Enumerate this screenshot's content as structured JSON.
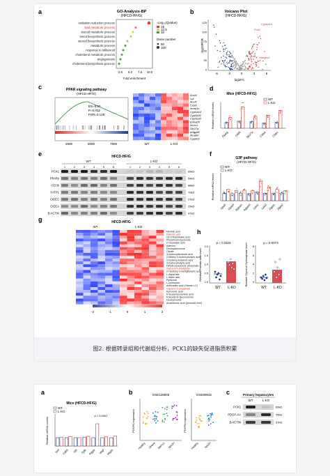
{
  "figure1": {
    "caption": "图2. 根据转录组和代谢组分析，PCK1的缺失促进脂质积累",
    "panel_a": {
      "letter": "a",
      "title": "GO-Analysis-BP",
      "subtitle": "(HFCD-HF/G)",
      "terms": [
        "oxidation-reduction process",
        "lipid metabolic process",
        "steroid metabolic process",
        "sterol biosynthetic process",
        "steroid biosynthetic process",
        "metabolic process",
        "response to stilbenoid",
        "cholesterol metabolic process",
        "angiogenesis",
        "cholesterol biosynthetic process"
      ],
      "xlabel": "Fold enrichment",
      "xticks": [
        "2.5",
        "5.0",
        "7.5",
        "10.0"
      ],
      "legend_q_title": "-Log₁₀(Qvalue)",
      "legend_q": [
        "15",
        "12.5",
        "10"
      ],
      "legend_gene_title": "Gene number",
      "legend_gene": [
        "50",
        "100"
      ]
    },
    "panel_b": {
      "letter": "b",
      "title": "Volcano Plot",
      "subtitle": "(HFCD-HF/G)",
      "ylabel": "-log10FDR",
      "xlabel": "log2FC",
      "xticks": [
        "-6",
        "-3",
        "0",
        "3",
        "6"
      ],
      "yticks": [
        "125",
        "100",
        "75",
        "50",
        "25",
        "0"
      ],
      "genes": [
        "Cyp4a14",
        "Pck1",
        "Hmgcs2"
      ]
    },
    "panel_c": {
      "letter": "c",
      "title": "PPAR signaling pathway",
      "subtitle": "(HFCD-HF/G)",
      "stats": [
        "ES=0.57",
        "P=0.012",
        "FDR=0.128"
      ],
      "xticks": [
        "2500",
        "5000",
        "7500"
      ],
      "groups": [
        "WT",
        "L-KO"
      ],
      "genes": [
        "Acsl4",
        "Lpl",
        "Acsl1",
        "Cd36",
        "Acaa1b",
        "Cyp4a14",
        "Cyp4a31",
        "Cyp4a32",
        "Ehhadh",
        "Acox1",
        "Slc27a",
        "Angptl4",
        "Acadm",
        "Cyp8b1"
      ]
    },
    "panel_d": {
      "letter": "d",
      "title": "Mice (HFCD-HF/G)",
      "ylabel": "Relative mRNA levels",
      "legend": [
        "WT",
        "L-KO"
      ],
      "categories": [
        "Pparg",
        "Cd36",
        "Slc27a",
        "Cidea",
        "Cidec"
      ]
    },
    "panel_e": {
      "letter": "e",
      "title": "HFCD-HF/G",
      "groups": [
        "WT",
        "L-KO"
      ],
      "lanes": [
        "1",
        "2",
        "3",
        "4",
        "5",
        "6",
        "1",
        "2",
        "3",
        "4",
        "5",
        "6"
      ],
      "proteins": [
        "PCK1",
        "PPARγ",
        "CD36",
        "FATP1",
        "CIDEC",
        "CIDEA",
        "β-ACTIN"
      ],
      "sizes": [
        "69kD",
        "54kD",
        "88kD",
        "70kD",
        "27kD",
        "25kD",
        "37kD"
      ]
    },
    "panel_f": {
      "letter": "f",
      "title": "G3P pathway",
      "subtitle": "(HFCD-HF/G)",
      "ylabel": "Relative mRNA levels",
      "legend": [
        "WT",
        "L-KO"
      ],
      "categories": [
        "Gpd1",
        "Gpat3",
        "Agpat1",
        "Agpat3",
        "Lpin1",
        "Lpin2",
        "Dgat1",
        "Dgat2"
      ]
    },
    "panel_g": {
      "letter": "g",
      "title": "HFCD-HF/G",
      "groups": [
        "WT",
        "L-KO"
      ],
      "metabolites": [
        "Myristic acid",
        "Palmitic acid",
        "cis-9-Palmitoleic acid",
        "Phosphoenolpyruvate",
        "2-Oxoadipic acid",
        "Adenine",
        "Deoxyadenosine",
        "Citrate",
        "3-hydroxydecanoic acid",
        "2-Methyl-3-hydroxybutyric acid",
        "2-hydroxy-butanoic acid",
        "3-hydroxybutyric acid",
        "Dihydroxyacetone phosphate",
        "Glycerol-3-phosphate",
        "2-Hydroxy-3-methylbutyric acid",
        "L-Aspartate",
        "L-Malic acid",
        "Pyridoxal",
        "L-Isoleucine",
        "Anthranilic acid (Vitamin L1)",
        "Glycerol-3-phosphate",
        "Kynurenic acid",
        "N-Acetylneuraminic acid",
        "N-Acetyl-D-glucosamine",
        "Deoxyinosine",
        "Arachidonic Acid (peroxide free)"
      ],
      "highlight": [
        "Palmitic acid",
        "Glycerol-3-phosphate"
      ],
      "scale": [
        "-2",
        "-1",
        "0",
        "1",
        "2"
      ]
    },
    "panel_h": {
      "letter": "h",
      "left": {
        "ylabel": "Relative Palmitic acid level",
        "p": "p = 0.0118",
        "groups": [
          "WT",
          "L-KO"
        ],
        "yticks": [
          "2.0",
          "1.5",
          "1.0",
          "0.5",
          "0.0"
        ]
      },
      "right": {
        "ylabel": "Relative Glycerol 3-phosphate level",
        "p": "p = 0.0373",
        "groups": [
          "WT",
          "L-KO"
        ],
        "yticks": [
          "8",
          "6",
          "4",
          "2",
          "0"
        ]
      }
    }
  },
  "figure2": {
    "panel_a": {
      "letter": "a",
      "title": "Mice (HFCD-HF/G)",
      "legend": [
        "WT",
        "L-KO"
      ],
      "ylabel": "Relative mRNA Levels",
      "p": "p = 0.0001",
      "categories": [
        "Vwf",
        "Cdh5",
        "Gfr",
        "Tgfb",
        "Pdgfa",
        "Vegf",
        "Vegfa"
      ]
    },
    "panel_b": {
      "letter": "b",
      "gse1": "GSE126848",
      "gse2": "GSE89632",
      "ylabel": "PDGFA expression",
      "g1": [
        "Healthy",
        "Obese",
        "NAFLD",
        "NASH"
      ],
      "g2": [
        "Healthy",
        "NASH"
      ]
    },
    "panel_c": {
      "letter": "c",
      "title": "Primary hepatocytes",
      "groups": [
        "WT",
        "L-KO"
      ],
      "proteins": [
        "PCK1",
        "PDGF-AA",
        "β-ACTIN"
      ],
      "sizes": [
        "69kD",
        "25kD",
        "37kD"
      ]
    }
  }
}
